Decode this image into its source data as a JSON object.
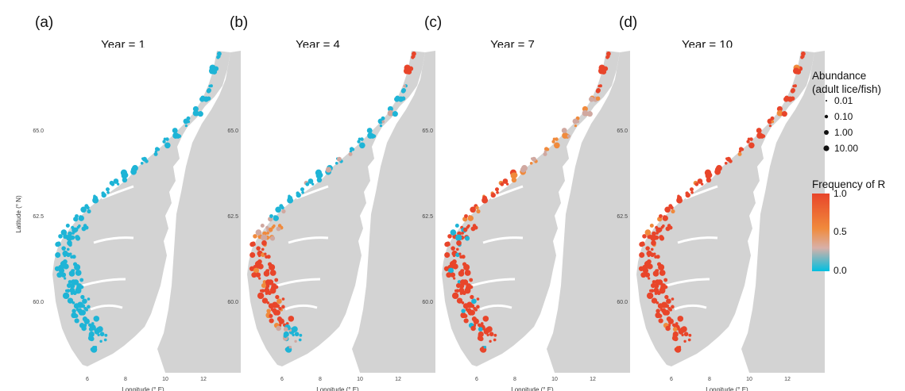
{
  "panels": [
    {
      "label": "(a)",
      "title": "Year = 1",
      "phase": 0
    },
    {
      "label": "(b)",
      "title": "Year = 4",
      "phase": 1
    },
    {
      "label": "(c)",
      "title": "Year = 7",
      "phase": 2
    },
    {
      "label": "(d)",
      "title": "Year = 10",
      "phase": 3
    }
  ],
  "axes": {
    "x_label": "Longitude (° E)",
    "y_label": "Latitude (° N)",
    "x_ticks": [
      "6",
      "8",
      "10",
      "12"
    ],
    "y_ticks": [
      "65.0",
      "62.5",
      "60.0"
    ]
  },
  "legend": {
    "abundance_title_1": "Abundance",
    "abundance_title_2": "(adult lice/fish)",
    "abundance_items": [
      "0.01",
      "0.10",
      "1.00",
      "10.00"
    ],
    "frequency_title": "Frequency of R",
    "frequency_ticks": [
      "1.0",
      "0.5",
      "0.0"
    ]
  },
  "colors": {
    "land": "#d3d3d3",
    "low": "#1eb4d6",
    "mid": "#f08a3c",
    "high": "#e8452a",
    "neutral": "#d0a8a0"
  }
}
